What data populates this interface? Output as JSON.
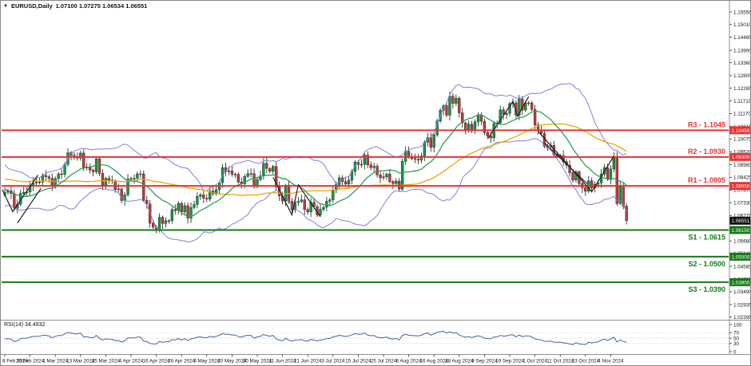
{
  "window": {
    "title": "EURUSD,Daily",
    "ohlc": "1.07100 1.07275 1.06534 1.06551",
    "marker": "▼"
  },
  "rsi_pane": {
    "label": "RSI(14) 34.4932",
    "period": 14,
    "value": 34.4932,
    "scale_labels": [
      "100",
      "70",
      "50",
      "30",
      "0"
    ],
    "scale_values": [
      100,
      70,
      50,
      30,
      0
    ],
    "dotted_levels": [
      70,
      50,
      30
    ]
  },
  "colors": {
    "bull": "#0c9b43",
    "bear": "#c13a34",
    "wick": "#1a1a1a",
    "band": "#8181d8",
    "ma_fast": "#2ba05c",
    "ma_slow": "#f0a500",
    "resistance": "#e93232",
    "support": "#167a16",
    "current_tag_bg": "#101010",
    "rsi_line": "#47629e",
    "axis_text": "#151515",
    "separator": "#8f8f8f",
    "trendline": "#1f1f1f",
    "dotted_level": "#bbbbbb",
    "tag_text": "#ffffff"
  },
  "chart_data": {
    "type": "candlestick",
    "symbol": "EURUSD",
    "timeframe": "Daily",
    "title": "EURUSD,Daily 1.07100 1.07275 1.06534 1.06551",
    "last_candle": {
      "open": 1.071,
      "high": 1.07275,
      "low": 1.06534,
      "close": 1.06551
    },
    "price_axis_labels": [
      "1.15550",
      "1.15010",
      "1.14465",
      "1.13900",
      "1.13360",
      "1.12805",
      "1.12265",
      "1.11710",
      "1.11170",
      "1.10615",
      "1.10075",
      "1.09520",
      "1.08965",
      "1.08425",
      "1.07870",
      "1.07330",
      "1.06775",
      "1.06235",
      "1.05680",
      "1.05140",
      "1.04585",
      "1.04030",
      "1.03490",
      "1.02935",
      "1.02395"
    ],
    "date_axis_labels": [
      "8 Feb 2024",
      "20 Feb 2024",
      "1 Mar 2024",
      "13 Mar 2024",
      "25 Mar 2024",
      "4 Apr 2024",
      "16 Apr 2024",
      "26 Apr 2024",
      "8 May 2024",
      "20 May 2024",
      "30 May 2024",
      "11 Jun 2024",
      "21 Jun 2024",
      "3 Jul 2024",
      "15 Jul 2024",
      "25 Jul 2024",
      "6 Aug 2024",
      "16 Aug 2024",
      "28 Aug 2024",
      "9 Sep 2024",
      "19 Sep 2024",
      "1 Oct 2024",
      "11 Oct 2024",
      "23 Oct 2024",
      "4 Nov 2024"
    ],
    "bars_per_label": 8,
    "ylim": [
      1.024,
      1.157
    ],
    "grid": false,
    "closes": [
      1.0778,
      1.0784,
      1.0772,
      1.0709,
      1.0726,
      1.0773,
      1.0777,
      1.0779,
      1.0805,
      1.0818,
      1.0822,
      1.0822,
      1.085,
      1.0845,
      1.0838,
      1.0805,
      1.0837,
      1.0857,
      1.0855,
      1.0898,
      1.0948,
      1.0937,
      1.0928,
      1.0925,
      1.0947,
      1.0883,
      1.0887,
      1.0873,
      1.0866,
      1.0922,
      1.0859,
      1.0808,
      1.0838,
      1.083,
      1.0826,
      1.0789,
      1.0792,
      1.0742,
      1.0767,
      1.0835,
      1.0837,
      1.0838,
      1.0857,
      1.0857,
      1.0743,
      1.0727,
      1.0644,
      1.0627,
      1.0617,
      1.067,
      1.0643,
      1.0655,
      1.0655,
      1.0703,
      1.0698,
      1.073,
      1.0693,
      1.072,
      1.0666,
      1.0712,
      1.0725,
      1.076,
      1.0767,
      1.0752,
      1.0748,
      1.0783,
      1.0771,
      1.0789,
      1.0819,
      1.0884,
      1.0867,
      1.087,
      1.0856,
      1.0855,
      1.0822,
      1.0814,
      1.0846,
      1.0858,
      1.0858,
      1.0802,
      1.0833,
      1.0848,
      1.0903,
      1.088,
      1.0868,
      1.0889,
      1.0801,
      1.0762,
      1.074,
      1.0808,
      1.0738,
      1.0703,
      1.0734,
      1.0738,
      1.0745,
      1.0703,
      1.0693,
      1.0734,
      1.0716,
      1.068,
      1.0704,
      1.0713,
      1.0739,
      1.0745,
      1.0787,
      1.0811,
      1.084,
      1.0824,
      1.0813,
      1.083,
      1.0867,
      1.0908,
      1.0897,
      1.0898,
      1.0938,
      1.0896,
      1.0884,
      1.089,
      1.0853,
      1.084,
      1.0844,
      1.0856,
      1.0824,
      1.0815,
      1.0826,
      1.0791,
      1.0911,
      1.0954,
      1.0932,
      1.0923,
      1.092,
      1.0916,
      1.0934,
      1.0993,
      1.1013,
      1.0971,
      1.1025,
      1.1085,
      1.1131,
      1.1151,
      1.111,
      1.1192,
      1.1161,
      1.1183,
      1.112,
      1.1077,
      1.1048,
      1.1071,
      1.1043,
      1.1081,
      1.111,
      1.1084,
      1.1035,
      1.102,
      1.1012,
      1.1074,
      1.1076,
      1.1133,
      1.1113,
      1.1118,
      1.116,
      1.1163,
      1.111,
      1.118,
      1.1132,
      1.1163,
      1.1163,
      1.1135,
      1.1068,
      1.1046,
      1.1031,
      1.0975,
      1.0977,
      1.098,
      1.094,
      1.0935,
      1.0936,
      1.0909,
      1.0894,
      1.0862,
      1.083,
      1.0866,
      1.0815,
      1.0798,
      1.0782,
      1.0827,
      1.0796,
      1.0812,
      1.0818,
      1.0856,
      1.0884,
      1.0834,
      1.0878,
      1.093,
      1.0729,
      1.0803,
      1.0718,
      1.06551
    ],
    "levels": [
      {
        "id": "R3",
        "label": "R3 - 1.1045",
        "price": 1.1045,
        "tag": "1.10450",
        "kind": "resistance"
      },
      {
        "id": "R2",
        "label": "R2 - 1.0930",
        "price": 1.093,
        "tag": "1.09300",
        "kind": "resistance"
      },
      {
        "id": "R1",
        "label": "R1 - 1.0805",
        "price": 1.0805,
        "tag": "1.08050",
        "kind": "resistance"
      },
      {
        "id": "S1",
        "label": "S1 - 1.0615",
        "price": 1.0615,
        "tag": "1.06150",
        "kind": "support"
      },
      {
        "id": "S2",
        "label": "S2 - 1.0500",
        "price": 1.05,
        "tag": "1.05000",
        "kind": "support"
      },
      {
        "id": "S3",
        "label": "S3 - 1.0390",
        "price": 1.039,
        "tag": "1.03900",
        "kind": "support"
      }
    ],
    "current_price": {
      "price": 1.06551,
      "tag": "1.06551"
    },
    "indicators": {
      "bollinger": {
        "period": 20,
        "deviation": 2
      },
      "ma_fast_period": 14,
      "ma_slow_period": 45,
      "rsi_period": 14
    },
    "trendlines": [
      [
        [
          -0.8,
          1.079
        ],
        [
          2.5,
          1.0694
        ],
        [
          10.5,
          1.0852
        ]
      ],
      [
        [
          4,
          1.0645
        ],
        [
          11.5,
          1.0795
        ]
      ],
      [
        [
          85,
          1.0842
        ],
        [
          91,
          1.068
        ],
        [
          93,
          1.081
        ],
        [
          100,
          1.0672
        ]
      ],
      [
        [
          153,
          1.1008
        ],
        [
          161,
          1.117
        ],
        [
          162.5,
          1.1105
        ],
        [
          166,
          1.119
        ]
      ],
      [
        [
          169,
          1.104
        ],
        [
          186,
          1.078
        ],
        [
          193,
          1.0934
        ]
      ],
      [
        [
          171,
          1.099
        ],
        [
          184.5,
          1.0815
        ]
      ]
    ]
  }
}
